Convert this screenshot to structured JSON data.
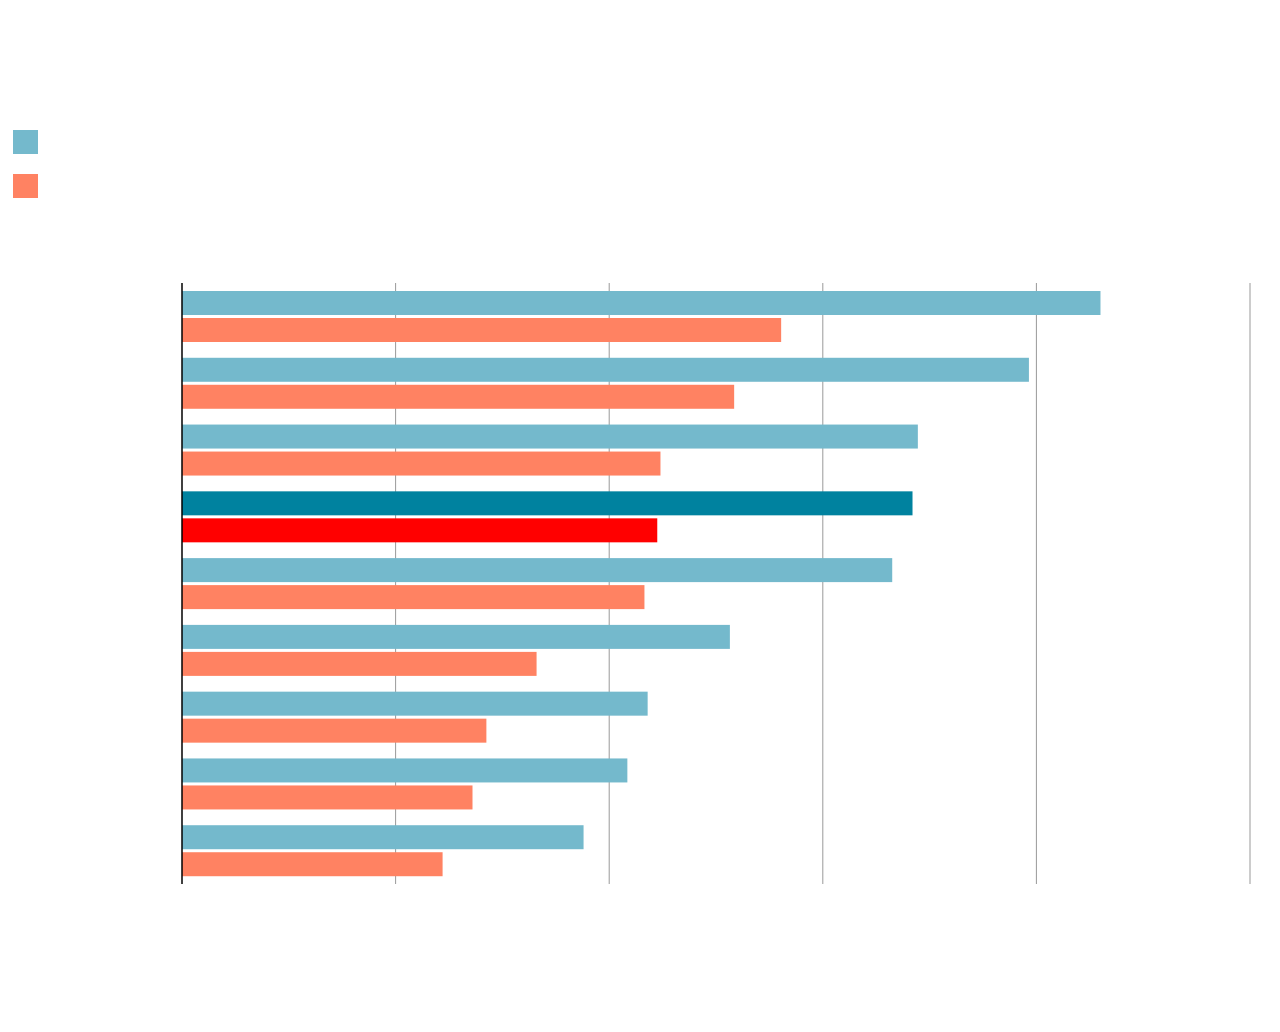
{
  "chart_data": {
    "type": "hbar",
    "categories": [
      null,
      null,
      null,
      null,
      null,
      null,
      null,
      null,
      null
    ],
    "series": [
      {
        "color": "#74b9cc",
        "colors": [
          "#74b9cc",
          "#74b9cc",
          "#74b9cc",
          "#00829f",
          "#74b9cc",
          "#74b9cc",
          "#74b9cc",
          "#74b9cc",
          "#74b9cc"
        ],
        "values": [
          86.0,
          79.3,
          68.9,
          68.4,
          66.5,
          51.3,
          43.6,
          41.7,
          37.6
        ]
      },
      {
        "color": "#ff8262",
        "colors": [
          "#ff8262",
          "#ff8262",
          "#ff8262",
          "#ff0000",
          "#ff8262",
          "#ff8262",
          "#ff8262",
          "#ff8262",
          "#ff8262"
        ],
        "values": [
          56.1,
          51.7,
          44.8,
          44.5,
          43.3,
          33.2,
          28.5,
          27.2,
          24.4
        ]
      }
    ],
    "xlim": [
      0,
      100
    ],
    "xticks": [
      0,
      20,
      40,
      60,
      80,
      100
    ],
    "grid": true,
    "legend": "top-left"
  }
}
